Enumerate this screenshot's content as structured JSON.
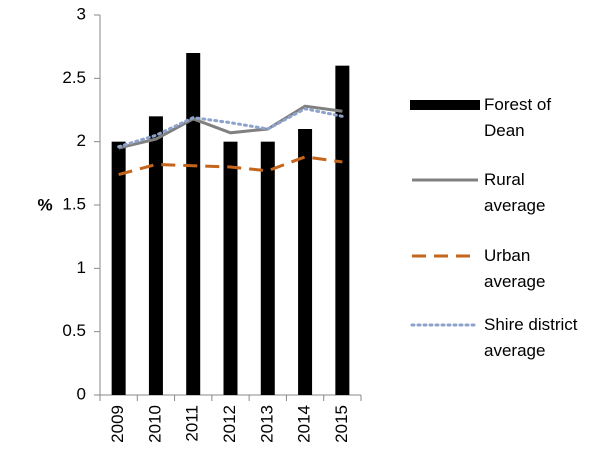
{
  "chart_data": {
    "type": "bar-line",
    "y_label": "%",
    "categories": [
      "2009",
      "2010",
      "2011",
      "2012",
      "2013",
      "2014",
      "2015"
    ],
    "series": [
      {
        "name": "Forest of Dean",
        "type": "bar",
        "color": "#000000",
        "values": [
          2.0,
          2.2,
          2.7,
          2.0,
          2.0,
          2.1,
          2.6
        ]
      },
      {
        "name": "Rural average",
        "type": "line",
        "line_style": "solid",
        "color": "#808080",
        "values": [
          1.95,
          2.02,
          2.18,
          2.07,
          2.1,
          2.28,
          2.24
        ]
      },
      {
        "name": "Urban average",
        "type": "line",
        "line_style": "dashed",
        "color": "#c5651b",
        "values": [
          1.74,
          1.82,
          1.81,
          1.8,
          1.77,
          1.88,
          1.84
        ]
      },
      {
        "name": "Shire district average",
        "type": "line",
        "line_style": "dotted",
        "color": "#8ea3cc",
        "values": [
          1.96,
          2.05,
          2.19,
          2.15,
          2.1,
          2.26,
          2.2
        ]
      }
    ],
    "ylim": [
      0,
      3
    ],
    "yticks": [
      0,
      0.5,
      1,
      1.5,
      2,
      2.5,
      3
    ],
    "grid": false,
    "legend": "right"
  }
}
